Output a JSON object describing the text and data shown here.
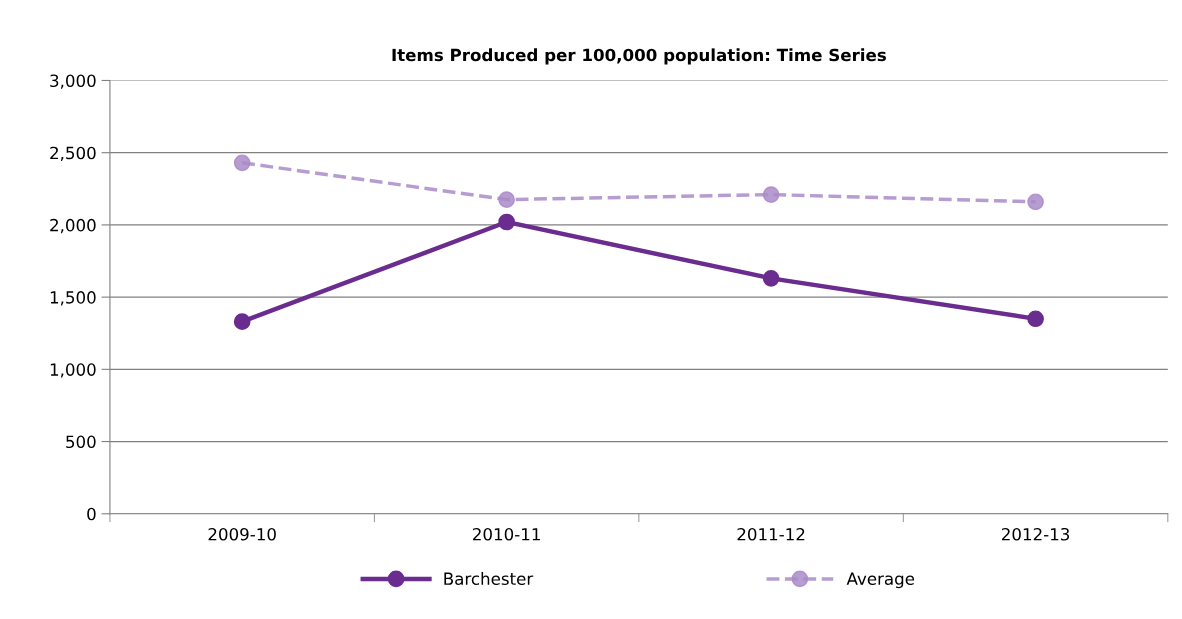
{
  "chart_data": {
    "type": "line",
    "title": "Items Produced per 100,000 population: Time Series",
    "categories": [
      "2009-10",
      "2010-11",
      "2011-12",
      "2012-13"
    ],
    "series": [
      {
        "name": "Barchester",
        "color": "#6a2c8e",
        "values": [
          1330,
          2020,
          1630,
          1350
        ],
        "line_style": "solid"
      },
      {
        "name": "Average",
        "color": "#a98bc8",
        "values": [
          2430,
          2175,
          2210,
          2160
        ],
        "line_style": "dashed"
      }
    ],
    "ylim": [
      0,
      3000
    ],
    "yticks": [
      {
        "value": 0,
        "label": "0"
      },
      {
        "value": 500,
        "label": "500"
      },
      {
        "value": 1000,
        "label": "1,000"
      },
      {
        "value": 1500,
        "label": "1,500"
      },
      {
        "value": 2000,
        "label": "2,000"
      },
      {
        "value": 2500,
        "label": "2,500"
      },
      {
        "value": 3000,
        "label": "3,000"
      }
    ],
    "grid": "y",
    "legend": "bottom",
    "marker": "circle"
  }
}
